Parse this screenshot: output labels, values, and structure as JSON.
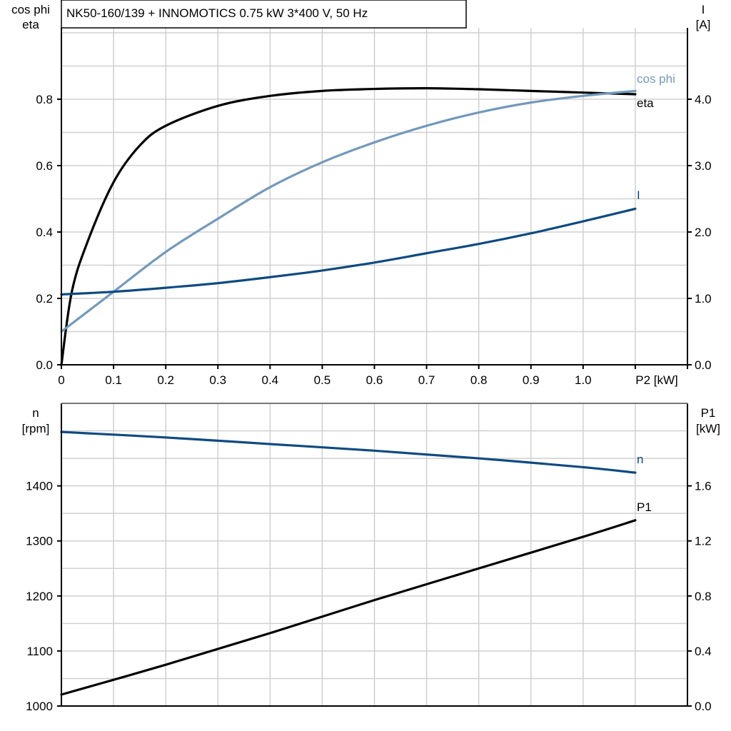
{
  "title": "NK50-160/139 + INNOMOTICS   0.75 kW   3*400 V, 50 Hz",
  "chart_data": [
    {
      "type": "line",
      "xlabel": "P2 [kW]",
      "ylabel_left": [
        "cos phi",
        "eta"
      ],
      "ylabel_right": [
        "I",
        "[A]"
      ],
      "xlim": [
        0,
        1.2
      ],
      "ylim_left": [
        0,
        1.015
      ],
      "ylim_right": [
        0,
        5.075
      ],
      "x_ticks": [
        "0",
        "0.1",
        "0.2",
        "0.3",
        "0.4",
        "0.5",
        "0.6",
        "0.7",
        "0.8",
        "0.9",
        "1.0"
      ],
      "y_ticks_left": [
        "0.0",
        "0.2",
        "0.4",
        "0.6",
        "0.8"
      ],
      "y_ticks_right": [
        "0.0",
        "1.0",
        "2.0",
        "3.0",
        "4.0"
      ],
      "grid": true,
      "series": [
        {
          "name": "eta",
          "axis": "left",
          "color": "#000000",
          "x": [
            0,
            0.02,
            0.05,
            0.1,
            0.15,
            0.2,
            0.3,
            0.4,
            0.5,
            0.6,
            0.7,
            0.8,
            0.9,
            1.0,
            1.1
          ],
          "y": [
            0,
            0.22,
            0.37,
            0.55,
            0.66,
            0.72,
            0.78,
            0.81,
            0.825,
            0.831,
            0.833,
            0.83,
            0.825,
            0.82,
            0.815
          ]
        },
        {
          "name": "cos phi",
          "axis": "left",
          "color": "#7399bb",
          "x": [
            0,
            0.1,
            0.2,
            0.3,
            0.4,
            0.5,
            0.6,
            0.7,
            0.8,
            0.9,
            1.0,
            1.1
          ],
          "y": [
            0.1,
            0.22,
            0.34,
            0.44,
            0.535,
            0.61,
            0.67,
            0.72,
            0.76,
            0.79,
            0.81,
            0.825
          ]
        },
        {
          "name": "I",
          "axis": "right",
          "color": "#0e4a80",
          "x": [
            0,
            0.1,
            0.2,
            0.3,
            0.4,
            0.5,
            0.6,
            0.7,
            0.8,
            0.9,
            1.0,
            1.1
          ],
          "y": [
            1.06,
            1.1,
            1.16,
            1.23,
            1.32,
            1.42,
            1.54,
            1.68,
            1.82,
            1.98,
            2.16,
            2.35
          ]
        }
      ]
    },
    {
      "type": "line",
      "xlabel": "",
      "ylabel_left": [
        "n",
        "[rpm]"
      ],
      "ylabel_right": [
        "P1",
        "[kW]"
      ],
      "xlim": [
        0,
        1.2
      ],
      "ylim_left": [
        1000,
        1550
      ],
      "ylim_right": [
        0,
        2.2
      ],
      "y_ticks_left": [
        "1000",
        "1100",
        "1200",
        "1300",
        "1400"
      ],
      "y_ticks_right": [
        "0.0",
        "0.4",
        "0.8",
        "1.2",
        "1.6"
      ],
      "grid": true,
      "series": [
        {
          "name": "n",
          "axis": "left",
          "color": "#0e4a80",
          "x": [
            0,
            0.2,
            0.4,
            0.6,
            0.8,
            1.0,
            1.1
          ],
          "y": [
            1498,
            1488,
            1476,
            1464,
            1450,
            1434,
            1424
          ]
        },
        {
          "name": "P1",
          "axis": "right",
          "color": "#000000",
          "x": [
            0,
            0.2,
            0.4,
            0.6,
            0.8,
            1.0,
            1.1
          ],
          "y": [
            0.083,
            0.3,
            0.53,
            0.77,
            1.0,
            1.23,
            1.35
          ]
        }
      ]
    }
  ]
}
